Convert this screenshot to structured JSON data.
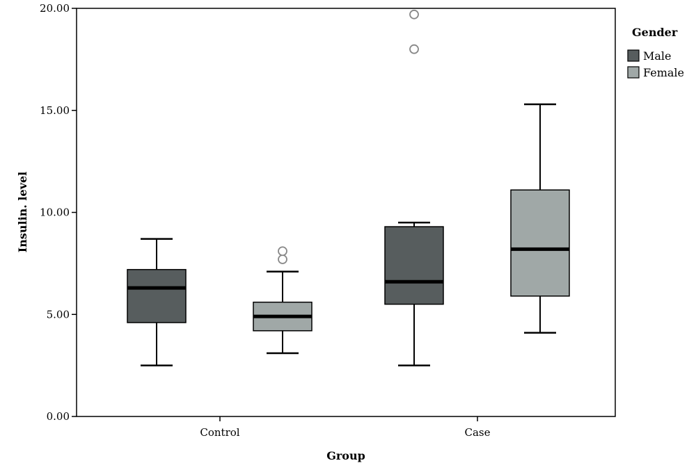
{
  "chart_data": {
    "type": "boxplot",
    "xlabel": "Group",
    "ylabel": "Insulin. level",
    "ylim": [
      0,
      20
    ],
    "yticks": [
      "0.00",
      "5.00",
      "10.00",
      "15.00",
      "20.00"
    ],
    "categories": [
      "Control",
      "Case"
    ],
    "legend": {
      "title": "Gender",
      "position": "right",
      "entries": [
        {
          "label": "Male",
          "color": "#575d5e"
        },
        {
          "label": "Female",
          "color": "#a0a8a7"
        }
      ]
    },
    "series": [
      {
        "name": "Male",
        "color": "#575d5e",
        "boxes": [
          {
            "category": "Control",
            "min": 2.5,
            "q1": 4.6,
            "median": 6.3,
            "q3": 7.2,
            "max": 8.7,
            "outliers": []
          },
          {
            "category": "Case",
            "min": 2.5,
            "q1": 5.5,
            "median": 6.6,
            "q3": 9.3,
            "max": 9.5,
            "outliers": [
              18.0,
              19.7
            ]
          }
        ]
      },
      {
        "name": "Female",
        "color": "#a0a8a7",
        "boxes": [
          {
            "category": "Control",
            "min": 3.1,
            "q1": 4.2,
            "median": 4.9,
            "q3": 5.6,
            "max": 7.1,
            "outliers": [
              7.7,
              8.1
            ]
          },
          {
            "category": "Case",
            "min": 4.1,
            "q1": 5.9,
            "median": 8.2,
            "q3": 11.1,
            "max": 15.3,
            "outliers": []
          }
        ]
      }
    ]
  }
}
